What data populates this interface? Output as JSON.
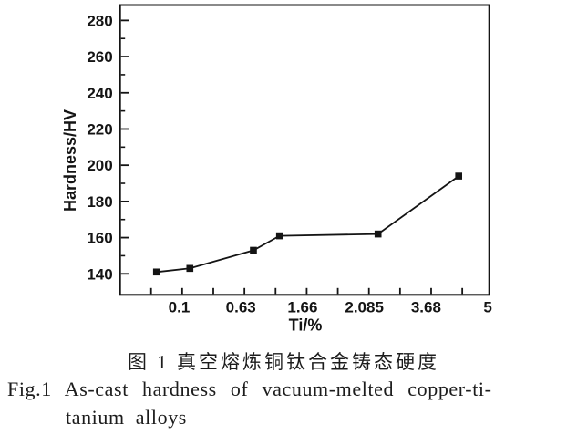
{
  "figure": {
    "caption_zh": "图 1  真空熔炼铜钛合金铸态硬度",
    "caption_en_line1": "Fig.1 As-cast hardness of vacuum-melted copper-ti-",
    "caption_en_line2": "tanium alloys"
  },
  "chart_data": {
    "type": "line",
    "title": "",
    "xlabel": "Ti/%",
    "ylabel": "Hardness/HV",
    "x_tick_labels": [
      "0.1",
      "0.63",
      "1.66",
      "2.085",
      "3.68",
      "5"
    ],
    "categories": [
      0.1,
      0.63,
      1.66,
      2.085,
      3.68,
      5
    ],
    "series": [
      {
        "name": "as-cast-hardness",
        "marker": "filled-square",
        "values": [
          141,
          143,
          153,
          161,
          162,
          194
        ],
        "x_fractions": [
          0.0988,
          0.1891,
          0.3612,
          0.4321,
          0.6988,
          0.9173
        ]
      }
    ],
    "y_ticks": [
      140,
      160,
      180,
      200,
      220,
      240,
      260,
      280
    ],
    "y_minor_ticks": [
      150,
      170,
      190,
      210,
      230,
      250,
      270
    ],
    "ylim": [
      128.4,
      288.5
    ],
    "x_minor_tick_count": 11,
    "grid": "off",
    "legend": "none",
    "ink_color": "#141414",
    "background_color": "#ffffff"
  }
}
